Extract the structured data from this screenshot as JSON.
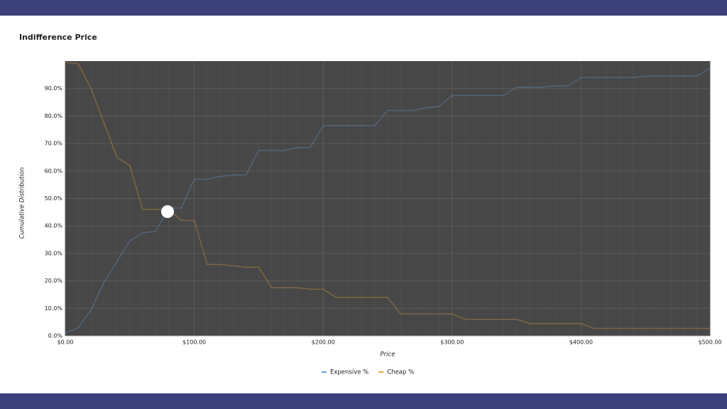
{
  "chart_data": {
    "type": "line",
    "title": "Indifference Price",
    "x_label": "Price",
    "y_label": "Cumulative Distribution",
    "x": [
      0,
      10,
      20,
      30,
      40,
      50,
      60,
      70,
      80,
      90,
      100,
      110,
      120,
      130,
      140,
      150,
      160,
      170,
      180,
      190,
      200,
      210,
      220,
      230,
      240,
      250,
      260,
      270,
      280,
      290,
      300,
      310,
      320,
      330,
      340,
      350,
      360,
      370,
      380,
      390,
      400,
      410,
      420,
      430,
      440,
      450,
      460,
      470,
      480,
      490,
      500
    ],
    "series": [
      {
        "name": "Expensive %",
        "color": "#6a9fd4",
        "values": [
          1,
          3,
          9.5,
          19.5,
          27,
          34.5,
          37.5,
          38,
          46.5,
          46.5,
          57,
          57,
          58,
          58.5,
          58.5,
          67.5,
          67.5,
          67.5,
          68.5,
          68.5,
          76.5,
          76.5,
          76.5,
          76.5,
          76.5,
          82,
          82,
          82,
          83,
          83.5,
          87.5,
          87.5,
          87.5,
          87.5,
          87.5,
          90.5,
          90.5,
          90.5,
          91,
          91,
          94,
          94,
          94,
          94,
          94,
          94.5,
          94.5,
          94.5,
          94.5,
          94.5,
          97.5
        ]
      },
      {
        "name": "Cheap %",
        "color": "#e8a33c",
        "values": [
          99.5,
          99,
          90,
          77.5,
          65,
          62,
          46,
          46,
          46,
          42,
          42,
          26,
          26,
          25.5,
          25,
          25,
          17.5,
          17.5,
          17.5,
          17,
          17,
          14,
          14,
          14,
          14,
          14,
          8,
          8,
          8,
          8,
          8,
          6,
          6,
          6,
          6,
          6,
          4.5,
          4.5,
          4.5,
          4.5,
          4.5,
          2.7,
          2.7,
          2.7,
          2.7,
          2.7,
          2.7,
          2.7,
          2.7,
          2.7,
          2.7
        ]
      }
    ],
    "xlim": [
      0,
      500
    ],
    "xticks": [
      {
        "value": 0,
        "label": "$0.00"
      },
      {
        "value": 100,
        "label": "$100.00"
      },
      {
        "value": 200,
        "label": "$200.00"
      },
      {
        "value": 300,
        "label": "$300.00"
      },
      {
        "value": 400,
        "label": "$400.00"
      },
      {
        "value": 500,
        "label": "$500.00"
      }
    ],
    "ylim": [
      0,
      100
    ],
    "yticks": [
      {
        "value": 0,
        "label": "0.0%"
      },
      {
        "value": 10,
        "label": "10.0%"
      },
      {
        "value": 20,
        "label": "20.0%"
      },
      {
        "value": 30,
        "label": "30.0%"
      },
      {
        "value": 40,
        "label": "40.0%"
      },
      {
        "value": 50,
        "label": "50.0%"
      },
      {
        "value": 60,
        "label": "60.0%"
      },
      {
        "value": 70,
        "label": "70.0%"
      },
      {
        "value": 80,
        "label": "80.0%"
      },
      {
        "value": 90,
        "label": "90.0%"
      }
    ],
    "grid": true,
    "legend": "bottom"
  }
}
